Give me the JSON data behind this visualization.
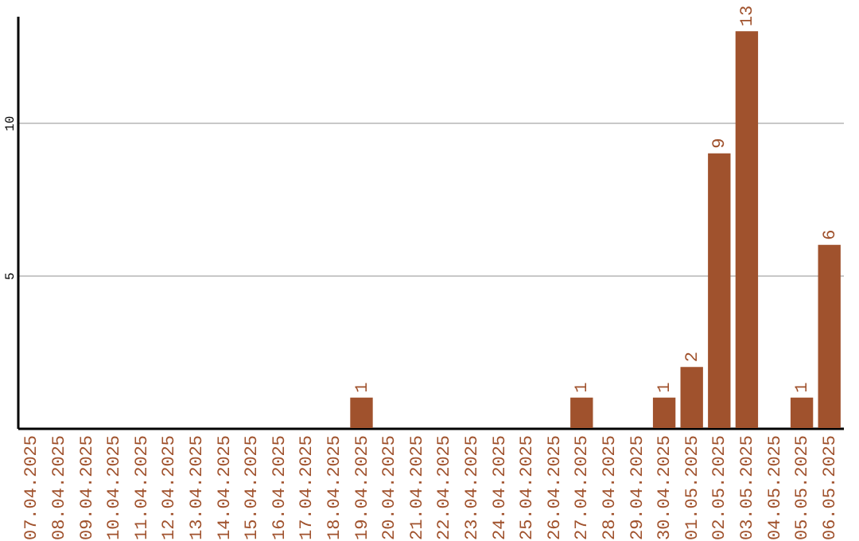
{
  "chart_data": {
    "type": "bar",
    "categories": [
      "07.04.2025",
      "08.04.2025",
      "09.04.2025",
      "10.04.2025",
      "11.04.2025",
      "12.04.2025",
      "13.04.2025",
      "14.04.2025",
      "15.04.2025",
      "16.04.2025",
      "17.04.2025",
      "18.04.2025",
      "19.04.2025",
      "20.04.2025",
      "21.04.2025",
      "22.04.2025",
      "23.04.2025",
      "24.04.2025",
      "25.04.2025",
      "26.04.2025",
      "27.04.2025",
      "28.04.2025",
      "29.04.2025",
      "30.04.2025",
      "01.05.2025",
      "02.05.2025",
      "03.05.2025",
      "04.05.2025",
      "05.05.2025",
      "06.05.2025"
    ],
    "values": [
      0,
      0,
      0,
      0,
      0,
      0,
      0,
      0,
      0,
      0,
      0,
      0,
      1,
      0,
      0,
      0,
      0,
      0,
      0,
      0,
      1,
      0,
      0,
      1,
      2,
      9,
      13,
      0,
      1,
      6
    ],
    "value_labels": [
      null,
      null,
      null,
      null,
      null,
      null,
      null,
      null,
      null,
      null,
      null,
      null,
      "1",
      null,
      null,
      null,
      null,
      null,
      null,
      null,
      "1",
      null,
      null,
      "1",
      "2",
      "9",
      "13",
      null,
      "1",
      "6"
    ],
    "color": "#a0522d",
    "ylim": [
      0,
      13.5
    ],
    "yticks": [
      5,
      10
    ],
    "grid": "y"
  }
}
